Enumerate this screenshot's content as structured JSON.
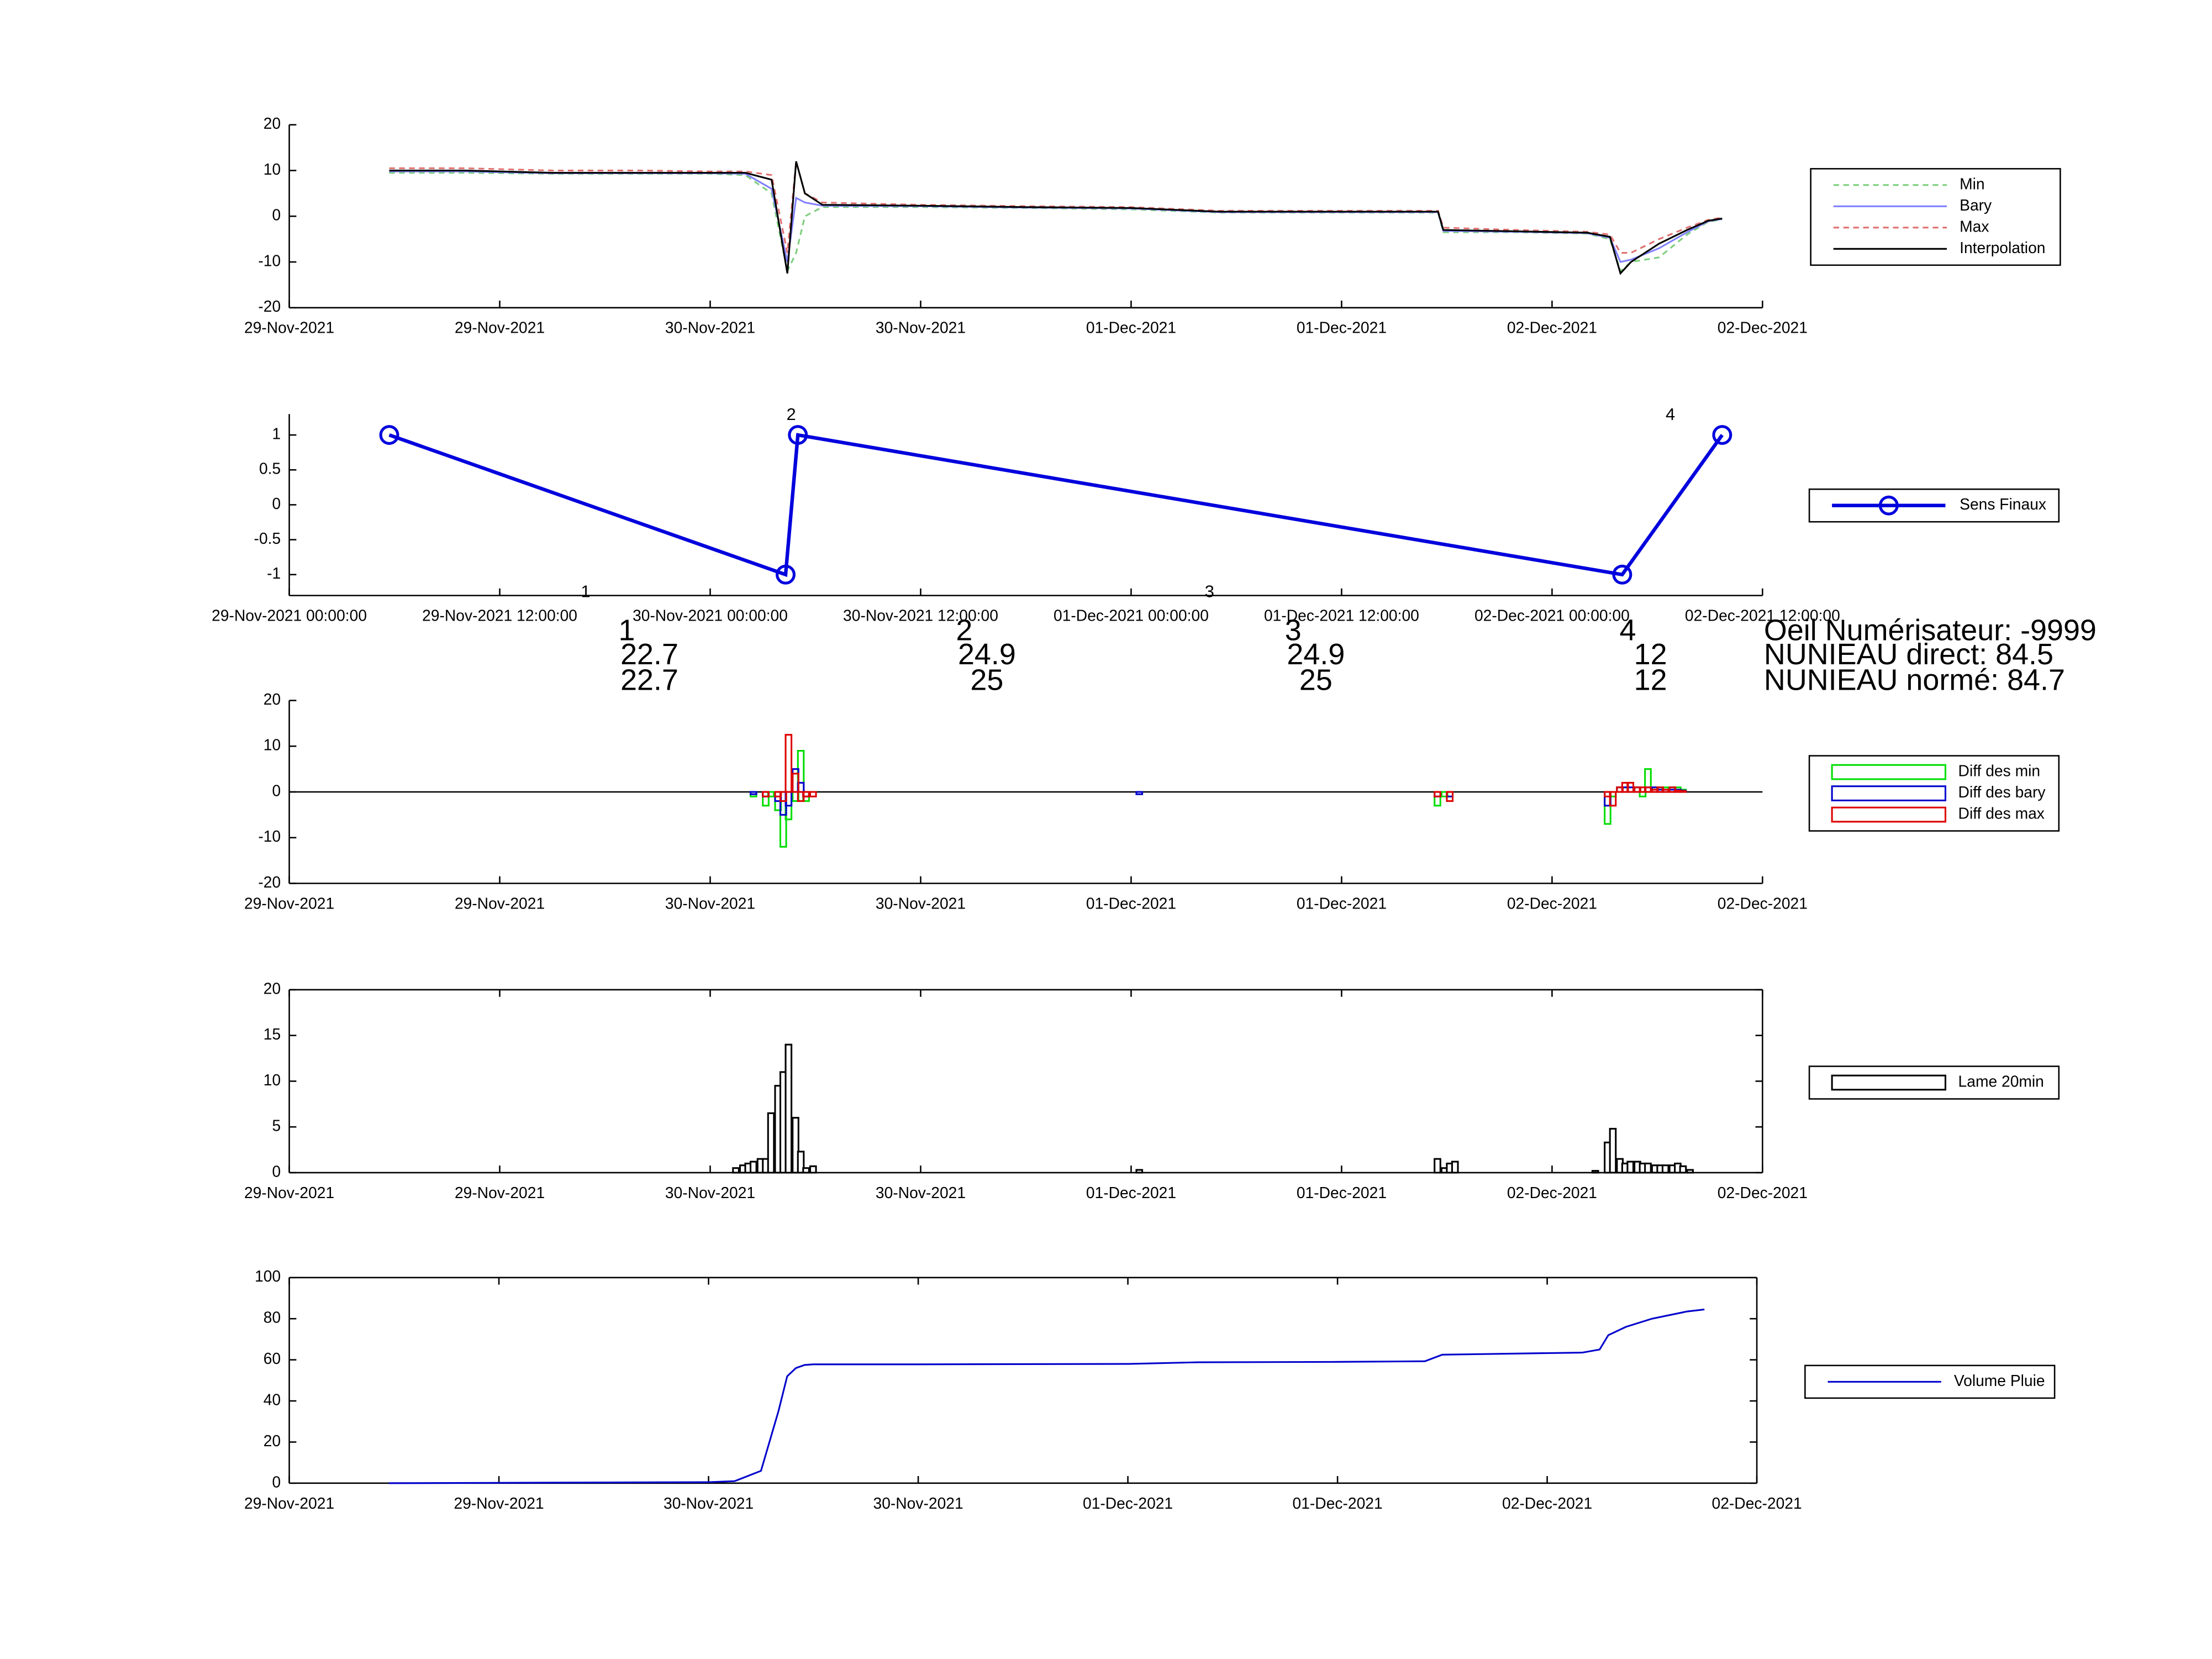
{
  "chart_data": [
    {
      "type": "line",
      "xlim": [
        0,
        84
      ],
      "ylim": [
        -20,
        20
      ],
      "yticks": [
        -20,
        -10,
        0,
        10,
        20
      ],
      "xticks": [
        {
          "value": 0,
          "label": "29-Nov-2021"
        },
        {
          "value": 12,
          "label": "29-Nov-2021"
        },
        {
          "value": 24,
          "label": "30-Nov-2021"
        },
        {
          "value": 36,
          "label": "30-Nov-2021"
        },
        {
          "value": 48,
          "label": "01-Dec-2021"
        },
        {
          "value": 60,
          "label": "01-Dec-2021"
        },
        {
          "value": 72,
          "label": "02-Dec-2021"
        },
        {
          "value": 84,
          "label": "02-Dec-2021"
        }
      ],
      "x": [
        5.7,
        10,
        15,
        20,
        24,
        26,
        27.5,
        28.4,
        28.9,
        29.4,
        30.4,
        36,
        42,
        48,
        53,
        60,
        65.5,
        65.8,
        70,
        74,
        75.3,
        75.9,
        76.5,
        78.1,
        79.7,
        80.9,
        81.7
      ],
      "series": [
        {
          "name": "Min",
          "color": "#7ccf7c",
          "linestyle": "dashed",
          "values": [
            9.5,
            9.5,
            9.3,
            9.3,
            9.3,
            9,
            5,
            -12,
            -8,
            0,
            2,
            2,
            1.8,
            1.5,
            0.8,
            0.8,
            0.8,
            -3.5,
            -3.5,
            -3.8,
            -5,
            -12,
            -10,
            -9,
            -4,
            -1.2,
            -0.7
          ]
        },
        {
          "name": "Bary",
          "color": "#8080ff",
          "linestyle": "solid",
          "values": [
            9.8,
            9.8,
            9.4,
            9.4,
            9.4,
            9.3,
            6,
            -10,
            4,
            3,
            2.3,
            2.2,
            1.9,
            1.7,
            0.9,
            0.9,
            0.9,
            -3.2,
            -3.4,
            -3.7,
            -4.7,
            -10,
            -9.5,
            -7,
            -3.5,
            -1.1,
            -0.6
          ]
        },
        {
          "name": "Max",
          "color": "#e07070",
          "linestyle": "dashed",
          "values": [
            10.5,
            10.5,
            10,
            10,
            9.8,
            9.8,
            9,
            -8,
            12,
            5,
            3,
            2.5,
            2.2,
            2,
            1.2,
            1.2,
            1.2,
            -2.5,
            -3,
            -3.4,
            -4,
            -8,
            -8,
            -5,
            -2.5,
            -0.8,
            -0.3
          ]
        },
        {
          "name": "Interpolation",
          "color": "#000000",
          "linestyle": "solid",
          "values": [
            10,
            10,
            9.5,
            9.5,
            9.5,
            9.5,
            8,
            -12.5,
            12,
            5,
            2.5,
            2.3,
            2,
            1.8,
            1,
            1,
            1,
            -3,
            -3.3,
            -3.6,
            -4.5,
            -12.5,
            -10,
            -6,
            -3,
            -1,
            -0.5
          ]
        }
      ]
    },
    {
      "type": "line",
      "marker": "o",
      "xlim": [
        0,
        84
      ],
      "ylim": [
        -1.3,
        1.3
      ],
      "yticks": [
        -1,
        -0.5,
        0,
        0.5,
        1
      ],
      "xticks": [
        {
          "value": 0,
          "label": "29-Nov-2021 00:00:00"
        },
        {
          "value": 12,
          "label": "29-Nov-2021 12:00:00"
        },
        {
          "value": 24,
          "label": "30-Nov-2021 00:00:00"
        },
        {
          "value": 36,
          "label": "30-Nov-2021 12:00:00"
        },
        {
          "value": 48,
          "label": "01-Dec-2021 00:00:00"
        },
        {
          "value": 60,
          "label": "01-Dec-2021 12:00:00"
        },
        {
          "value": 72,
          "label": "02-Dec-2021 00:00:00"
        },
        {
          "value": 84,
          "label": "02-Dec-2021 12:00:00"
        }
      ],
      "x": [
        5.7,
        28.3,
        29.0,
        76.0,
        81.7
      ],
      "series": [
        {
          "name": "Sens Finaux",
          "color": "#0000dd",
          "linestyle": "solid",
          "values": [
            1,
            -1,
            1,
            -1,
            1
          ]
        }
      ],
      "annotations": [
        "1",
        "2",
        "3",
        "4"
      ]
    },
    {
      "type": "bar",
      "xlim": [
        0,
        84
      ],
      "ylim": [
        -20,
        20
      ],
      "yticks": [
        -20,
        -10,
        0,
        10,
        20
      ],
      "xticks": [
        {
          "value": 0,
          "label": "29-Nov-2021"
        },
        {
          "value": 12,
          "label": "29-Nov-2021"
        },
        {
          "value": 24,
          "label": "30-Nov-2021"
        },
        {
          "value": 36,
          "label": "30-Nov-2021"
        },
        {
          "value": 48,
          "label": "01-Dec-2021"
        },
        {
          "value": 60,
          "label": "01-Dec-2021"
        },
        {
          "value": 72,
          "label": "02-Dec-2021"
        },
        {
          "value": 84,
          "label": "02-Dec-2021"
        }
      ],
      "x": [
        26.3,
        26.7,
        27.0,
        27.3,
        27.7,
        28.0,
        28.3,
        28.7,
        29.0,
        29.3,
        29.7,
        48.3,
        65.3,
        65.7,
        66.0,
        66.3,
        75.0,
        75.3,
        75.7,
        76.0,
        76.3,
        76.7,
        77.0,
        77.3,
        77.7,
        78.0,
        78.3,
        78.7,
        79.0,
        79.3
      ],
      "series": [
        {
          "name": "Diff des min",
          "color": "#00dd00",
          "values": [
            -1,
            0,
            -3,
            -1,
            -4,
            -12,
            -6,
            -2,
            9,
            -2,
            0,
            0,
            -3,
            -1,
            -1,
            0,
            -7,
            -1,
            1,
            1,
            2,
            1,
            -1,
            5,
            1,
            1,
            1,
            1,
            1,
            0.5
          ]
        },
        {
          "name": "Diff des bary",
          "color": "#0000cc",
          "values": [
            -0.5,
            0,
            -1,
            0,
            -2,
            -5,
            -3,
            5,
            2,
            -1,
            0,
            -0.5,
            -1,
            0,
            -1,
            0,
            -3,
            0,
            1,
            1,
            1,
            1,
            0,
            1,
            1,
            0.5,
            0.5,
            0.5,
            0.5,
            0.3
          ]
        },
        {
          "name": "Diff des max",
          "color": "#dd0000",
          "values": [
            0,
            0,
            -1,
            0,
            -1,
            -2,
            12.5,
            4,
            -2,
            -1,
            -1,
            0,
            -1,
            0,
            -2,
            0,
            -1,
            -3,
            1,
            2,
            2,
            1,
            1,
            1,
            0.5,
            1,
            0.5,
            1,
            0.3,
            0.2
          ]
        }
      ]
    },
    {
      "type": "bar",
      "box": true,
      "xlim": [
        0,
        84
      ],
      "ylim": [
        0,
        20
      ],
      "yticks": [
        0,
        5,
        10,
        15,
        20
      ],
      "xticks": [
        {
          "value": 0,
          "label": "29-Nov-2021"
        },
        {
          "value": 12,
          "label": "29-Nov-2021"
        },
        {
          "value": 24,
          "label": "30-Nov-2021"
        },
        {
          "value": 36,
          "label": "30-Nov-2021"
        },
        {
          "value": 48,
          "label": "01-Dec-2021"
        },
        {
          "value": 60,
          "label": "01-Dec-2021"
        },
        {
          "value": 72,
          "label": "02-Dec-2021"
        },
        {
          "value": 84,
          "label": "02-Dec-2021"
        }
      ],
      "x": [
        25.3,
        25.7,
        26.0,
        26.3,
        26.7,
        27.0,
        27.3,
        27.7,
        28.0,
        28.3,
        28.7,
        29.0,
        29.3,
        29.7,
        48.3,
        65.3,
        65.7,
        66.0,
        66.3,
        74.3,
        75.0,
        75.3,
        75.7,
        76.0,
        76.3,
        76.7,
        77.0,
        77.3,
        77.7,
        78.0,
        78.3,
        78.7,
        79.0,
        79.3,
        79.7
      ],
      "series": [
        {
          "name": "Lame 20min",
          "color": "#000000",
          "values": [
            0.5,
            0.8,
            1,
            1.2,
            1.5,
            1.5,
            6.5,
            9.5,
            11,
            14,
            6,
            2.3,
            0.5,
            0.7,
            0.3,
            1.5,
            0.5,
            1,
            1.2,
            0.2,
            3.3,
            4.8,
            1.5,
            1,
            1.2,
            1.2,
            1,
            1,
            0.8,
            0.8,
            0.8,
            0.8,
            1,
            0.7,
            0.3
          ]
        }
      ]
    },
    {
      "type": "line",
      "box": true,
      "xlim": [
        0,
        84
      ],
      "ylim": [
        0,
        100
      ],
      "yticks": [
        0,
        20,
        40,
        60,
        80,
        100
      ],
      "xticks": [
        {
          "value": 0,
          "label": "29-Nov-2021"
        },
        {
          "value": 12,
          "label": "29-Nov-2021"
        },
        {
          "value": 24,
          "label": "30-Nov-2021"
        },
        {
          "value": 36,
          "label": "30-Nov-2021"
        },
        {
          "value": 48,
          "label": "01-Dec-2021"
        },
        {
          "value": 60,
          "label": "01-Dec-2021"
        },
        {
          "value": 72,
          "label": "02-Dec-2021"
        },
        {
          "value": 84,
          "label": "02-Dec-2021"
        }
      ],
      "x": [
        5.7,
        24,
        25.5,
        27,
        28,
        28.5,
        29,
        29.5,
        30,
        36,
        48,
        52,
        60,
        65,
        66,
        70,
        74,
        75,
        75.5,
        76.5,
        78,
        80,
        81
      ],
      "series": [
        {
          "name": "Volume Pluie",
          "color": "#0000cc",
          "linestyle": "solid",
          "values": [
            0,
            0.5,
            1,
            6,
            35,
            52,
            56,
            57.5,
            57.8,
            57.8,
            58,
            58.8,
            59,
            59.3,
            62.5,
            63,
            63.5,
            65,
            72,
            76,
            80,
            83.5,
            84.5
          ]
        }
      ]
    }
  ],
  "summary": {
    "columns": [
      {
        "label": "1",
        "values": [
          22.7,
          22.7
        ]
      },
      {
        "label": "2",
        "values": [
          24.9,
          25
        ]
      },
      {
        "label": "3",
        "values": [
          24.9,
          25
        ]
      },
      {
        "label": "4",
        "values": [
          12,
          12
        ]
      }
    ],
    "lines": [
      "Oeil Numérisateur: -9999",
      "NUNIEAU direct: 84.5",
      "NUNIEAU normé: 84.7"
    ]
  }
}
